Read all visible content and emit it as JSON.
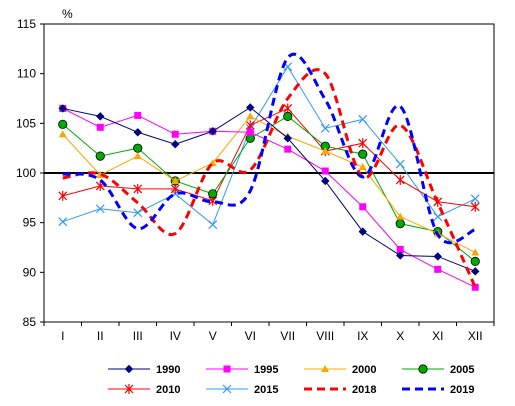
{
  "chart_data": {
    "type": "line",
    "unit_label": "%",
    "categories": [
      "I",
      "II",
      "III",
      "IV",
      "V",
      "VI",
      "VII",
      "VIII",
      "IX",
      "X",
      "XI",
      "XII"
    ],
    "ylim": [
      85,
      115
    ],
    "yticks": [
      85,
      90,
      95,
      100,
      105,
      110,
      115
    ],
    "reference_line": 100,
    "grid": false,
    "legend_position": "bottom",
    "series": [
      {
        "name": "1990",
        "color": "#000080",
        "marker": "diamond",
        "dash": "solid",
        "smooth": false,
        "values": [
          106.5,
          105.7,
          104.1,
          102.9,
          104.2,
          106.6,
          103.5,
          99.2,
          94.1,
          91.7,
          91.6,
          90.1
        ]
      },
      {
        "name": "1995",
        "color": "#ff00ff",
        "marker": "square",
        "dash": "solid",
        "smooth": false,
        "values": [
          106.5,
          104.6,
          105.8,
          103.9,
          104.2,
          104.1,
          102.4,
          100.2,
          96.6,
          92.3,
          90.3,
          88.5
        ]
      },
      {
        "name": "2000",
        "color": "#ffa500",
        "marker": "triangle",
        "dash": "solid",
        "smooth": false,
        "values": [
          103.9,
          99.8,
          101.7,
          99.2,
          101.0,
          105.7,
          103.7,
          102.2,
          100.6,
          95.6,
          93.9,
          92.0
        ]
      },
      {
        "name": "2005",
        "color": "#00aa00",
        "marker": "circle",
        "dash": "solid",
        "smooth": false,
        "values": [
          104.9,
          101.7,
          102.5,
          99.2,
          97.9,
          103.5,
          105.7,
          102.7,
          101.9,
          94.9,
          94.1,
          91.1
        ]
      },
      {
        "name": "2010",
        "color": "#ff0000",
        "marker": "star",
        "dash": "solid",
        "smooth": false,
        "values": [
          97.7,
          98.7,
          98.4,
          98.4,
          97.2,
          104.8,
          106.5,
          102.2,
          103.0,
          99.3,
          97.1,
          96.6
        ]
      },
      {
        "name": "2015",
        "color": "#3399ff",
        "marker": "cross",
        "dash": "solid",
        "smooth": false,
        "values": [
          95.1,
          96.4,
          96.0,
          97.9,
          94.8,
          104.5,
          110.7,
          104.5,
          105.4,
          100.9,
          95.6,
          97.4
        ]
      },
      {
        "name": "2018",
        "color": "#ff0000",
        "marker": "none",
        "dash": "dashed",
        "smooth": true,
        "values": [
          99.5,
          99.9,
          97.0,
          93.9,
          101.0,
          100.3,
          107.5,
          110.0,
          99.6,
          104.8,
          97.0,
          88.5
        ]
      },
      {
        "name": "2019",
        "color": "#0000ff",
        "marker": "none",
        "dash": "dashed",
        "smooth": true,
        "values": [
          99.9,
          99.3,
          94.4,
          97.9,
          97.1,
          98.2,
          111.6,
          107.4,
          99.6,
          106.7,
          93.8,
          94.3
        ]
      }
    ]
  }
}
